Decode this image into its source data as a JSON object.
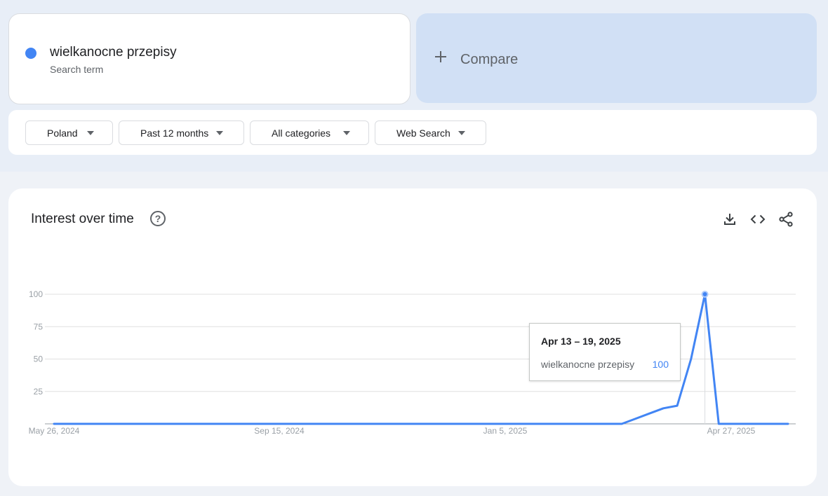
{
  "search_term": {
    "name": "wielkanocne przepisy",
    "type": "Search term",
    "color": "#4285f4"
  },
  "compare": {
    "label": "Compare"
  },
  "filters": [
    {
      "label": "Poland"
    },
    {
      "label": "Past 12 months"
    },
    {
      "label": "All categories"
    },
    {
      "label": "Web Search"
    }
  ],
  "chart": {
    "title": "Interest over time",
    "help_icon": "help-circle-icon",
    "tools": [
      "download-icon",
      "embed-code-icon",
      "share-icon"
    ]
  },
  "tooltip": {
    "date": "Apr 13 – 19, 2025",
    "term": "wielkanocne przepisy",
    "value": "100"
  },
  "chart_data": {
    "type": "line",
    "x_tick_labels": [
      "May 26, 2024",
      "Sep 15, 2024",
      "Jan 5, 2025",
      "Apr 27, 2025"
    ],
    "y_tick_labels": [
      "100",
      "75",
      "50",
      "25"
    ],
    "ylim": [
      0,
      100
    ],
    "grid": true,
    "series": [
      {
        "color": "#4285f4",
        "values": [
          0,
          0,
          0,
          0,
          0,
          0,
          0,
          0,
          0,
          0,
          0,
          0,
          0,
          0,
          0,
          0,
          0,
          0,
          0,
          0,
          0,
          0,
          0,
          0,
          0,
          0,
          0,
          0,
          0,
          0,
          0,
          0,
          0,
          0,
          0,
          0,
          0,
          0,
          0,
          0,
          0,
          0,
          4,
          8,
          12,
          14,
          50,
          100,
          0,
          0,
          0,
          0,
          0,
          0
        ]
      }
    ],
    "highlight_index": 47
  }
}
